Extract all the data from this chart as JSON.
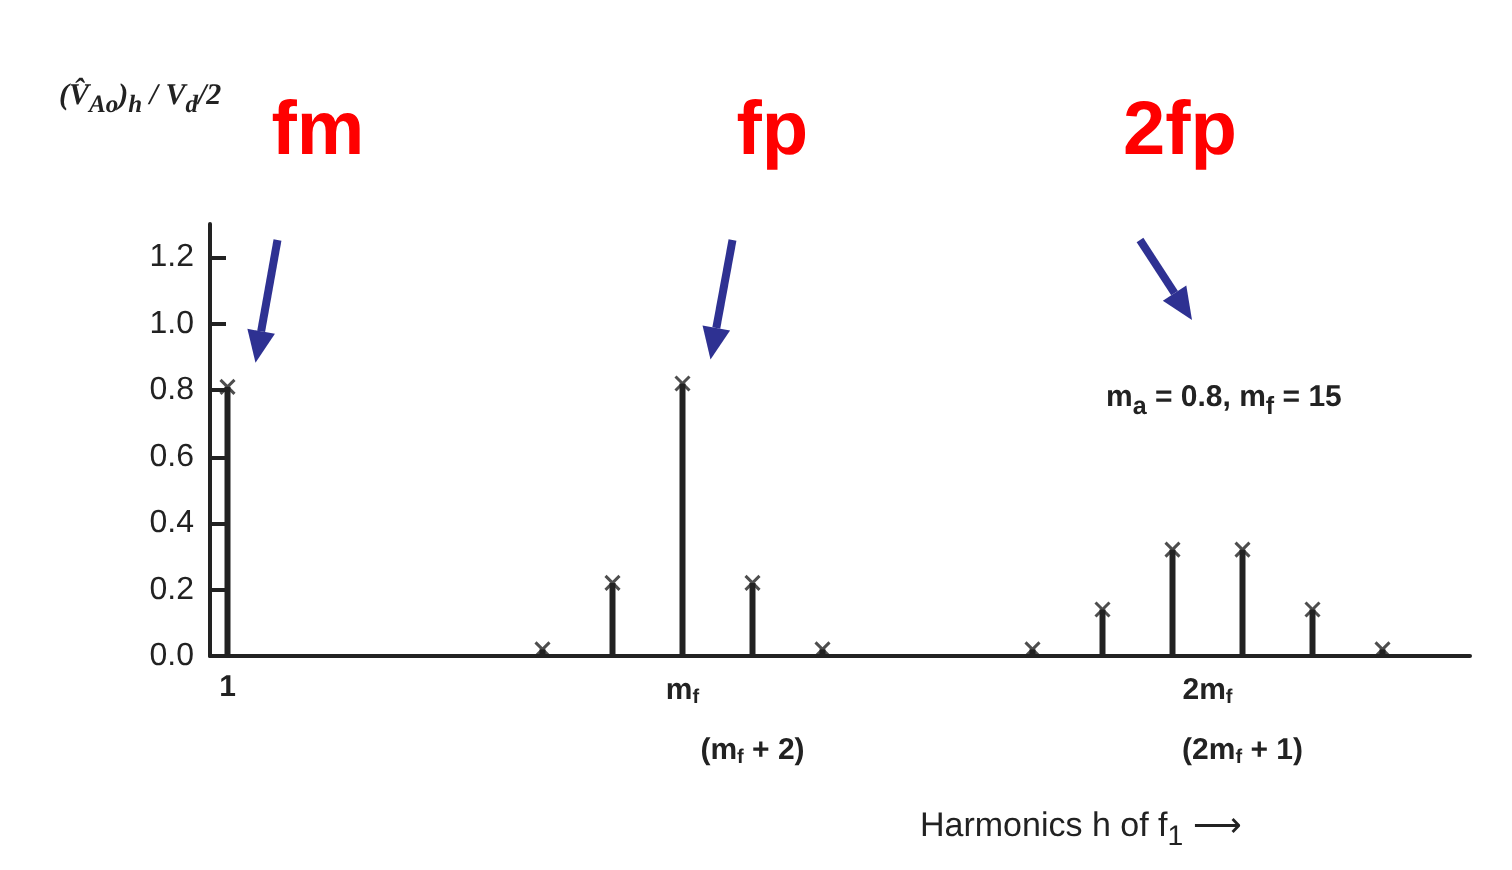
{
  "chart_data": {
    "type": "lollipop",
    "ylabel": "(V̂$_{Ao}$)$_{h}$ / V$_{d}$/2",
    "xlabel": "Harmonics h of f$_{1}$ ⟶",
    "categories": [
      "1",
      null,
      null,
      null,
      null,
      null,
      null,
      null,
      null,
      null,
      null,
      null,
      null,
      "m$_{f}$",
      null,
      "(m$_{f}$ + 2)",
      null,
      null,
      null,
      null,
      null,
      null,
      null,
      null,
      null,
      null,
      null,
      null,
      "2m$_{f}$",
      "(2m$_{f}$ + 1)",
      null,
      null,
      null,
      null,
      null,
      null
    ],
    "values": [
      0.81,
      null,
      null,
      null,
      null,
      null,
      null,
      null,
      null,
      0.02,
      null,
      0.22,
      null,
      0.82,
      null,
      0.22,
      null,
      0.02,
      null,
      null,
      null,
      null,
      null,
      0.02,
      null,
      0.14,
      null,
      0.32,
      null,
      0.32,
      null,
      0.14,
      null,
      0.02,
      null,
      null
    ],
    "color": "#222222",
    "marker": "cross",
    "ylim": [
      0,
      1.3
    ],
    "yticks": [
      {
        "value": 0,
        "label": "0.0"
      },
      {
        "value": 0.2,
        "label": "0.2"
      },
      {
        "value": 0.4,
        "label": "0.4"
      },
      {
        "value": 0.6,
        "label": "0.6"
      },
      {
        "value": 0.8,
        "label": "0.8"
      },
      {
        "value": 1,
        "label": "1.0"
      },
      {
        "value": 1.2,
        "label": "1.2"
      }
    ],
    "annotations": [
      {
        "text": "fm",
        "x": "1",
        "y": 0.81
      },
      {
        "text": "fp",
        "x": "m$_{f}$",
        "y": 0.82
      },
      "2fp",
      "m$_{a}$ = 0.8, m$_{f}$ = 15"
    ]
  }
}
